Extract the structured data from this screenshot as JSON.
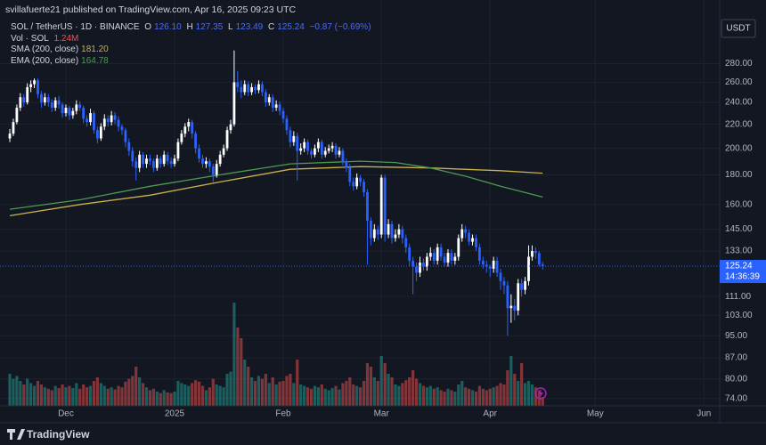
{
  "header": "svillafuerte21 published on TradingView.com, Apr 16, 2025 09:23 UTC",
  "footer": "TradingView",
  "chart_data": {
    "type": "candlestick",
    "title": "SOL / TetherUS · 1D · BINANCE",
    "currency": "USDT",
    "ohlc_names": [
      "O",
      "H",
      "L",
      "C"
    ],
    "last_labels": [
      "126.10",
      "127.35",
      "123.49",
      "125.24"
    ],
    "change": "−0.87 (−0.69%)",
    "volume_name": "Vol · SOL",
    "volume_label": "1.24M",
    "countdown": "14:36:39",
    "up_color": "#ffffff",
    "down_color": "#2962ff",
    "volume_up_color": "#26a69a",
    "volume_down_color": "#ef5350",
    "log_scale": true,
    "grid": true,
    "ylim": [
      71.9,
      330
    ],
    "yticks": [
      {
        "value": 280,
        "label": "280.00"
      },
      {
        "value": 260,
        "label": "260.00"
      },
      {
        "value": 240,
        "label": "240.00"
      },
      {
        "value": 220,
        "label": "220.00"
      },
      {
        "value": 200,
        "label": "200.00"
      },
      {
        "value": 180,
        "label": "180.00"
      },
      {
        "value": 160,
        "label": "160.00"
      },
      {
        "value": 145,
        "label": "145.00"
      },
      {
        "value": 133,
        "label": "133.00"
      },
      {
        "value": 111,
        "label": "111.00"
      },
      {
        "value": 103,
        "label": "103.00"
      },
      {
        "value": 95,
        "label": "95.00"
      },
      {
        "value": 87,
        "label": "87.00"
      },
      {
        "value": 80,
        "label": "80.00"
      },
      {
        "value": 74,
        "label": "74.00"
      }
    ],
    "xlim": [
      -2.8,
      202.5
    ],
    "xticks": [
      {
        "value": 16,
        "label": "Dec"
      },
      {
        "value": 47,
        "label": "2025"
      },
      {
        "value": 78,
        "label": "Feb"
      },
      {
        "value": 106,
        "label": "Mar"
      },
      {
        "value": 137,
        "label": "Apr"
      },
      {
        "value": 167,
        "label": "May"
      },
      {
        "value": 198,
        "label": "Jun"
      }
    ],
    "candles": [
      [
        208,
        216,
        205,
        212
      ],
      [
        212,
        225,
        210,
        222
      ],
      [
        222,
        238,
        220,
        235
      ],
      [
        235,
        249,
        232,
        245
      ],
      [
        245,
        248,
        236,
        240
      ],
      [
        240,
        259,
        238,
        255
      ],
      [
        255,
        262,
        250,
        258
      ],
      [
        258,
        264,
        254,
        262
      ],
      [
        262,
        264,
        244,
        248
      ],
      [
        248,
        251,
        235,
        240
      ],
      [
        240,
        249,
        237,
        245
      ],
      [
        245,
        248,
        236,
        240
      ],
      [
        240,
        243,
        231,
        235
      ],
      [
        235,
        245,
        232,
        242
      ],
      [
        242,
        246,
        234,
        238
      ],
      [
        238,
        240,
        226,
        230
      ],
      [
        230,
        238,
        227,
        235
      ],
      [
        235,
        237,
        224,
        228
      ],
      [
        228,
        235,
        225,
        232
      ],
      [
        232,
        242,
        229,
        238
      ],
      [
        238,
        241,
        232,
        235
      ],
      [
        235,
        237,
        221,
        225
      ],
      [
        225,
        228,
        218,
        222
      ],
      [
        222,
        234,
        219,
        230
      ],
      [
        230,
        232,
        212,
        215
      ],
      [
        215,
        218,
        204,
        208
      ],
      [
        208,
        221,
        206,
        218
      ],
      [
        218,
        229,
        215,
        225
      ],
      [
        225,
        228,
        218,
        222
      ],
      [
        222,
        232,
        219,
        228
      ],
      [
        228,
        231,
        220,
        224
      ],
      [
        224,
        227,
        214,
        218
      ],
      [
        218,
        220,
        211,
        215
      ],
      [
        215,
        217,
        201,
        205
      ],
      [
        205,
        208,
        194,
        198
      ],
      [
        198,
        201,
        186,
        190
      ],
      [
        190,
        193,
        176,
        185
      ],
      [
        185,
        198,
        182,
        195
      ],
      [
        195,
        197,
        185,
        188
      ],
      [
        188,
        195,
        185,
        192
      ],
      [
        192,
        195,
        187,
        190
      ],
      [
        190,
        192,
        182,
        185
      ],
      [
        185,
        195,
        183,
        192
      ],
      [
        192,
        194,
        185,
        188
      ],
      [
        188,
        198,
        186,
        195
      ],
      [
        195,
        197,
        187,
        190
      ],
      [
        190,
        193,
        185,
        188
      ],
      [
        188,
        195,
        186,
        192
      ],
      [
        192,
        208,
        190,
        205
      ],
      [
        205,
        215,
        203,
        212
      ],
      [
        212,
        221,
        209,
        218
      ],
      [
        218,
        225,
        214,
        222
      ],
      [
        222,
        224,
        208,
        212
      ],
      [
        212,
        214,
        196,
        200
      ],
      [
        200,
        203,
        189,
        192
      ],
      [
        192,
        195,
        185,
        188
      ],
      [
        188,
        193,
        185,
        190
      ],
      [
        190,
        192,
        182,
        186
      ],
      [
        186,
        188,
        175,
        180
      ],
      [
        180,
        191,
        178,
        188
      ],
      [
        188,
        198,
        186,
        195
      ],
      [
        195,
        203,
        193,
        200
      ],
      [
        200,
        218,
        198,
        215
      ],
      [
        215,
        224,
        212,
        220
      ],
      [
        220,
        295,
        218,
        260
      ],
      [
        260,
        272,
        250,
        255
      ],
      [
        255,
        262,
        244,
        250
      ],
      [
        250,
        262,
        247,
        258
      ],
      [
        258,
        261,
        246,
        250
      ],
      [
        250,
        259,
        247,
        255
      ],
      [
        255,
        258,
        248,
        252
      ],
      [
        252,
        262,
        249,
        258
      ],
      [
        258,
        261,
        246,
        250
      ],
      [
        250,
        253,
        236,
        240
      ],
      [
        240,
        248,
        237,
        245
      ],
      [
        245,
        248,
        231,
        235
      ],
      [
        235,
        242,
        232,
        238
      ],
      [
        238,
        241,
        228,
        232
      ],
      [
        232,
        235,
        221,
        225
      ],
      [
        225,
        228,
        211,
        215
      ],
      [
        215,
        218,
        201,
        205
      ],
      [
        205,
        214,
        202,
        210
      ],
      [
        210,
        213,
        176,
        198
      ],
      [
        198,
        204,
        195,
        200
      ],
      [
        200,
        208,
        197,
        205
      ],
      [
        205,
        207,
        195,
        198
      ],
      [
        198,
        200,
        192,
        195
      ],
      [
        195,
        203,
        193,
        200
      ],
      [
        200,
        208,
        197,
        205
      ],
      [
        205,
        207,
        192,
        195
      ],
      [
        195,
        201,
        193,
        198
      ],
      [
        198,
        203,
        196,
        200
      ],
      [
        200,
        205,
        197,
        202
      ],
      [
        202,
        204,
        192,
        195
      ],
      [
        195,
        201,
        193,
        198
      ],
      [
        198,
        200,
        187,
        190
      ],
      [
        190,
        192,
        182,
        185
      ],
      [
        185,
        188,
        172,
        175
      ],
      [
        175,
        178,
        169,
        172
      ],
      [
        172,
        181,
        170,
        178
      ],
      [
        178,
        180,
        172,
        175
      ],
      [
        175,
        177,
        165,
        168
      ],
      [
        168,
        170,
        126,
        150
      ],
      [
        150,
        152,
        136,
        140
      ],
      [
        140,
        148,
        138,
        145
      ],
      [
        145,
        147,
        139,
        142
      ],
      [
        142,
        180,
        140,
        178
      ],
      [
        178,
        180,
        138,
        142
      ],
      [
        142,
        151,
        140,
        148
      ],
      [
        148,
        150,
        137,
        140
      ],
      [
        140,
        145,
        138,
        142
      ],
      [
        142,
        148,
        140,
        145
      ],
      [
        145,
        147,
        137,
        140
      ],
      [
        140,
        142,
        132,
        135
      ],
      [
        135,
        137,
        125,
        128
      ],
      [
        128,
        130,
        112,
        125
      ],
      [
        125,
        127,
        118,
        122
      ],
      [
        122,
        130,
        120,
        127
      ],
      [
        127,
        129,
        123,
        125
      ],
      [
        125,
        132,
        123,
        130
      ],
      [
        130,
        135,
        128,
        132
      ],
      [
        132,
        134,
        126,
        128
      ],
      [
        128,
        137,
        126,
        135
      ],
      [
        135,
        137,
        128,
        130
      ],
      [
        130,
        132,
        125,
        127
      ],
      [
        127,
        134,
        125,
        132
      ],
      [
        132,
        134,
        126,
        128
      ],
      [
        128,
        132,
        126,
        130
      ],
      [
        130,
        142,
        128,
        140
      ],
      [
        140,
        148,
        138,
        145
      ],
      [
        145,
        147,
        140,
        143
      ],
      [
        143,
        145,
        136,
        138
      ],
      [
        138,
        142,
        136,
        140
      ],
      [
        140,
        142,
        133,
        135
      ],
      [
        135,
        137,
        126,
        128
      ],
      [
        128,
        130,
        124,
        126
      ],
      [
        126,
        128,
        122,
        125
      ],
      [
        125,
        126,
        120,
        124
      ],
      [
        124,
        130,
        122,
        128
      ],
      [
        128,
        130,
        120,
        122
      ],
      [
        122,
        124,
        114,
        118
      ],
      [
        118,
        120,
        112,
        116
      ],
      [
        116,
        118,
        95,
        106
      ],
      [
        106,
        112,
        100,
        107
      ],
      [
        107,
        110,
        101,
        105
      ],
      [
        105,
        119,
        103,
        117
      ],
      [
        117,
        119,
        111,
        114
      ],
      [
        114,
        120,
        112,
        118
      ],
      [
        118,
        136,
        116,
        130
      ],
      [
        130,
        136,
        128,
        133
      ],
      [
        133,
        135,
        129,
        132
      ],
      [
        132,
        133,
        125,
        126.1
      ],
      [
        126.1,
        127.35,
        123.49,
        125.24
      ]
    ],
    "volumes": [
      4.5,
      3.8,
      4.2,
      3.5,
      3.0,
      3.8,
      3.2,
      2.8,
      3.5,
      3.0,
      2.6,
      2.4,
      2.2,
      2.8,
      2.5,
      3.0,
      2.6,
      2.8,
      2.5,
      3.2,
      2.4,
      3.0,
      2.6,
      2.8,
      3.5,
      4.0,
      3.2,
      2.8,
      2.4,
      2.6,
      2.3,
      2.8,
      2.6,
      3.4,
      3.8,
      4.2,
      5.5,
      4.0,
      3.2,
      2.6,
      2.2,
      2.4,
      2.0,
      1.8,
      2.2,
      1.9,
      1.8,
      2.0,
      3.5,
      3.2,
      3.0,
      2.8,
      3.2,
      3.6,
      3.4,
      2.8,
      2.2,
      2.6,
      3.8,
      3.0,
      2.8,
      2.6,
      4.5,
      4.8,
      14.5,
      11.0,
      9.5,
      6.5,
      5.5,
      4.0,
      3.5,
      4.2,
      3.8,
      4.5,
      3.2,
      4.0,
      3.0,
      3.4,
      3.5,
      4.2,
      4.5,
      3.2,
      6.5,
      3.0,
      2.8,
      2.6,
      2.4,
      2.8,
      2.6,
      3.0,
      2.4,
      2.2,
      2.5,
      2.8,
      2.3,
      3.2,
      3.5,
      4.0,
      3.0,
      2.8,
      2.6,
      3.5,
      6.0,
      5.5,
      4.0,
      3.5,
      7.0,
      6.0,
      4.5,
      4.0,
      3.0,
      2.8,
      3.2,
      3.6,
      4.0,
      5.0,
      3.8,
      3.2,
      2.8,
      2.6,
      2.8,
      2.4,
      2.6,
      2.2,
      2.0,
      2.4,
      2.2,
      2.0,
      3.0,
      3.5,
      2.6,
      2.4,
      2.2,
      2.0,
      2.8,
      2.4,
      2.2,
      2.4,
      2.6,
      2.8,
      3.2,
      3.0,
      5.0,
      7.0,
      4.5,
      3.5,
      6.0,
      3.2,
      3.5,
      3.0,
      2.6,
      2.2,
      1.24
    ],
    "lines": [
      {
        "name": "SMA (200, close)",
        "color": "#c8b24a",
        "value_label": "181.20",
        "x": [
          0,
          20,
          40,
          60,
          80,
          100,
          120,
          140,
          152
        ],
        "values": [
          153,
          160,
          166,
          175,
          184,
          186,
          185,
          183,
          181.2
        ]
      },
      {
        "name": "EMA (200, close)",
        "color": "#4c9a52",
        "value_label": "164.78",
        "x": [
          0,
          20,
          40,
          60,
          80,
          100,
          110,
          120,
          130,
          140,
          152
        ],
        "values": [
          157,
          163,
          172,
          180,
          188,
          190,
          189,
          185,
          179,
          172,
          164.78
        ]
      }
    ]
  }
}
